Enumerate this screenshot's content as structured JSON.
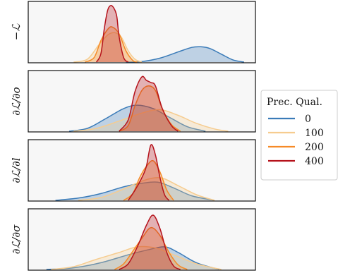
{
  "chart_data": {
    "type": "area",
    "title": "",
    "colors": {
      "0": "#3a7bb8",
      "100": "#f6cc8f",
      "200": "#f68a27",
      "400": "#b5121b",
      "panel_bg": "#f7f7f7"
    },
    "legend": {
      "title": "Prec. Qual.",
      "placement": "right",
      "entries": [
        "0",
        "100",
        "200",
        "400"
      ]
    },
    "x_range": [
      0,
      1
    ],
    "grid": false,
    "panels": [
      {
        "ylabel": "−ℒ",
        "series": [
          {
            "name": "0",
            "points": [
              [
                0.43,
                0
              ],
              [
                0.5,
                0.01
              ],
              [
                0.58,
                0.07
              ],
              [
                0.66,
                0.18
              ],
              [
                0.72,
                0.26
              ],
              [
                0.76,
                0.27
              ],
              [
                0.8,
                0.24
              ],
              [
                0.85,
                0.14
              ],
              [
                0.9,
                0.04
              ],
              [
                0.95,
                0
              ]
            ]
          },
          {
            "name": "100",
            "points": [
              [
                0.2,
                0
              ],
              [
                0.26,
                0.05
              ],
              [
                0.31,
                0.3
              ],
              [
                0.35,
                0.48
              ],
              [
                0.38,
                0.52
              ],
              [
                0.41,
                0.44
              ],
              [
                0.44,
                0.2
              ],
              [
                0.47,
                0.05
              ],
              [
                0.5,
                0
              ]
            ]
          },
          {
            "name": "200",
            "points": [
              [
                0.25,
                0
              ],
              [
                0.29,
                0.08
              ],
              [
                0.32,
                0.38
              ],
              [
                0.35,
                0.58
              ],
              [
                0.37,
                0.62
              ],
              [
                0.4,
                0.5
              ],
              [
                0.43,
                0.2
              ],
              [
                0.46,
                0.03
              ],
              [
                0.48,
                0
              ]
            ]
          },
          {
            "name": "400",
            "points": [
              [
                0.3,
                0
              ],
              [
                0.32,
                0.15
              ],
              [
                0.335,
                0.6
              ],
              [
                0.35,
                0.92
              ],
              [
                0.365,
                1.0
              ],
              [
                0.38,
                0.93
              ],
              [
                0.39,
                0.8
              ],
              [
                0.4,
                0.45
              ],
              [
                0.42,
                0.08
              ],
              [
                0.44,
                0
              ]
            ]
          }
        ]
      },
      {
        "ylabel": "∂ℒ/∂o",
        "series": [
          {
            "name": "0",
            "points": [
              [
                0.18,
                0
              ],
              [
                0.26,
                0.05
              ],
              [
                0.34,
                0.22
              ],
              [
                0.42,
                0.4
              ],
              [
                0.48,
                0.46
              ],
              [
                0.55,
                0.4
              ],
              [
                0.62,
                0.25
              ],
              [
                0.7,
                0.08
              ],
              [
                0.78,
                0
              ]
            ]
          },
          {
            "name": "100",
            "points": [
              [
                0.2,
                0
              ],
              [
                0.3,
                0.05
              ],
              [
                0.4,
                0.18
              ],
              [
                0.5,
                0.32
              ],
              [
                0.58,
                0.38
              ],
              [
                0.66,
                0.28
              ],
              [
                0.74,
                0.14
              ],
              [
                0.82,
                0.04
              ],
              [
                0.88,
                0
              ]
            ]
          },
          {
            "name": "200",
            "points": [
              [
                0.4,
                0
              ],
              [
                0.44,
                0.1
              ],
              [
                0.47,
                0.45
              ],
              [
                0.5,
                0.72
              ],
              [
                0.53,
                0.8
              ],
              [
                0.56,
                0.72
              ],
              [
                0.59,
                0.4
              ],
              [
                0.63,
                0.12
              ],
              [
                0.67,
                0
              ]
            ]
          },
          {
            "name": "400",
            "points": [
              [
                0.4,
                0
              ],
              [
                0.44,
                0.2
              ],
              [
                0.47,
                0.7
              ],
              [
                0.5,
                0.96
              ],
              [
                0.52,
                0.9
              ],
              [
                0.54,
                0.86
              ],
              [
                0.56,
                0.8
              ],
              [
                0.59,
                0.4
              ],
              [
                0.63,
                0.1
              ],
              [
                0.66,
                0
              ]
            ]
          }
        ]
      },
      {
        "ylabel": "∂ℒ/∂l",
        "series": [
          {
            "name": "0",
            "points": [
              [
                0.12,
                0
              ],
              [
                0.22,
                0.04
              ],
              [
                0.32,
                0.12
              ],
              [
                0.42,
                0.24
              ],
              [
                0.5,
                0.3
              ],
              [
                0.57,
                0.32
              ],
              [
                0.64,
                0.22
              ],
              [
                0.72,
                0.08
              ],
              [
                0.82,
                0
              ]
            ]
          },
          {
            "name": "100",
            "points": [
              [
                0.22,
                0
              ],
              [
                0.32,
                0.05
              ],
              [
                0.42,
                0.2
              ],
              [
                0.5,
                0.34
              ],
              [
                0.58,
                0.4
              ],
              [
                0.66,
                0.26
              ],
              [
                0.74,
                0.1
              ],
              [
                0.82,
                0
              ]
            ]
          },
          {
            "name": "200",
            "points": [
              [
                0.42,
                0
              ],
              [
                0.46,
                0.12
              ],
              [
                0.49,
                0.4
              ],
              [
                0.52,
                0.6
              ],
              [
                0.55,
                0.7
              ],
              [
                0.58,
                0.5
              ],
              [
                0.61,
                0.18
              ],
              [
                0.64,
                0
              ]
            ]
          },
          {
            "name": "400",
            "points": [
              [
                0.44,
                0
              ],
              [
                0.47,
                0.18
              ],
              [
                0.5,
                0.4
              ],
              [
                0.52,
                0.6
              ],
              [
                0.54,
                0.98
              ],
              [
                0.56,
                0.8
              ],
              [
                0.58,
                0.4
              ],
              [
                0.6,
                0.1
              ],
              [
                0.62,
                0
              ]
            ]
          }
        ]
      },
      {
        "ylabel": "∂ℒ/∂σ",
        "series": [
          {
            "name": "0",
            "points": [
              [
                0.08,
                0
              ],
              [
                0.2,
                0.03
              ],
              [
                0.32,
                0.12
              ],
              [
                0.44,
                0.26
              ],
              [
                0.52,
                0.34
              ],
              [
                0.6,
                0.4
              ],
              [
                0.66,
                0.3
              ],
              [
                0.74,
                0.12
              ],
              [
                0.84,
                0
              ]
            ]
          },
          {
            "name": "100",
            "points": [
              [
                0.1,
                0
              ],
              [
                0.2,
                0.05
              ],
              [
                0.3,
                0.18
              ],
              [
                0.4,
                0.3
              ],
              [
                0.48,
                0.4
              ],
              [
                0.56,
                0.38
              ],
              [
                0.64,
                0.26
              ],
              [
                0.74,
                0.1
              ],
              [
                0.85,
                0
              ]
            ]
          },
          {
            "name": "200",
            "points": [
              [
                0.38,
                0
              ],
              [
                0.42,
                0.1
              ],
              [
                0.46,
                0.32
              ],
              [
                0.5,
                0.55
              ],
              [
                0.54,
                0.74
              ],
              [
                0.58,
                0.6
              ],
              [
                0.62,
                0.3
              ],
              [
                0.66,
                0.08
              ],
              [
                0.7,
                0
              ]
            ]
          },
          {
            "name": "400",
            "points": [
              [
                0.4,
                0
              ],
              [
                0.44,
                0.1
              ],
              [
                0.48,
                0.4
              ],
              [
                0.52,
                0.78
              ],
              [
                0.55,
                0.96
              ],
              [
                0.58,
                0.72
              ],
              [
                0.61,
                0.3
              ],
              [
                0.64,
                0.06
              ],
              [
                0.67,
                0
              ]
            ]
          }
        ]
      }
    ]
  }
}
